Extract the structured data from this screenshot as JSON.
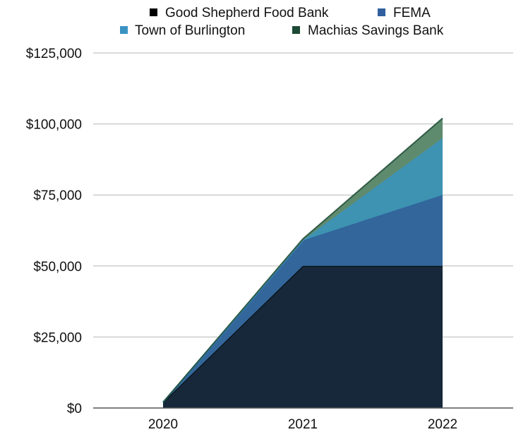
{
  "chart_data": {
    "type": "area",
    "stacked": true,
    "categories": [
      "2020",
      "2021",
      "2022"
    ],
    "series": [
      {
        "name": "Good Shepherd Food Bank",
        "values": [
          2000,
          50000,
          50000
        ],
        "color": "#16283a"
      },
      {
        "name": "FEMA",
        "values": [
          0,
          9000,
          25000
        ],
        "color": "#33679b"
      },
      {
        "name": "Town of Burlington",
        "values": [
          0,
          0,
          20000
        ],
        "color": "#3d93b1"
      },
      {
        "name": "Machias Savings Bank",
        "values": [
          0,
          500,
          7000
        ],
        "color": "#5e8a6e"
      }
    ],
    "legend_colors": [
      "#000000",
      "#2f5f9e",
      "#3b93c2",
      "#1c4a34"
    ],
    "y_ticks": [
      "$0",
      "$25,000",
      "$50,000",
      "$75,000",
      "$100,000",
      "$125,000"
    ],
    "ylim": [
      0,
      125000
    ],
    "grid": true,
    "legend_position": "top"
  }
}
